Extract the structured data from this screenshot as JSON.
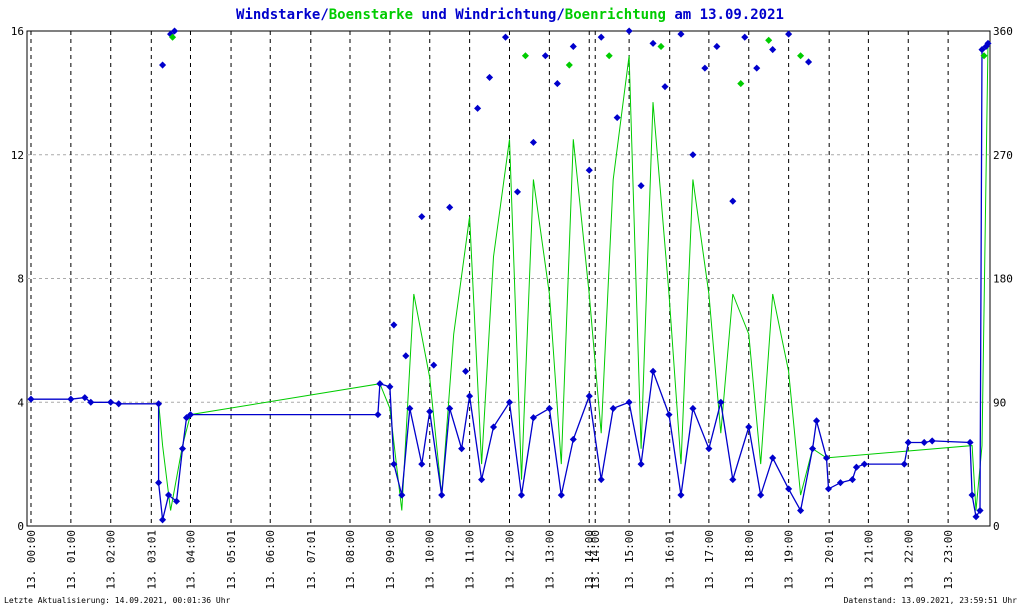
{
  "chart_data": {
    "type": "line",
    "title": {
      "parts": [
        {
          "text": "Windstarke",
          "color": "#0000cc"
        },
        {
          "text": "/",
          "color": "#0000cc"
        },
        {
          "text": "Boenstarke",
          "color": "#00cc00"
        },
        {
          "text": " und ",
          "color": "#0000cc"
        },
        {
          "text": "Windrichtung",
          "color": "#0000cc"
        },
        {
          "text": "/",
          "color": "#0000cc"
        },
        {
          "text": "Boenrichtung",
          "color": "#00cc00"
        },
        {
          "text": " am 13.09.2021",
          "color": "#0000cc"
        }
      ]
    },
    "y_left": {
      "ticks": [
        "0",
        "4",
        "8",
        "12",
        "16"
      ],
      "range": [
        0,
        16
      ]
    },
    "y_right": {
      "ticks": [
        "0",
        "90",
        "180",
        "270",
        "360"
      ],
      "range": [
        0,
        360
      ]
    },
    "x_ticks": [
      "13. 00:00",
      "13. 01:00",
      "13. 02:00",
      "13. 03:01",
      "13. 04:00",
      "13. 05:01",
      "13. 06:00",
      "13. 07:01",
      "13. 08:00",
      "13. 09:00",
      "13. 10:00",
      "13. 11:00",
      "13. 12:00",
      "13. 13:00",
      "13. 14:00",
      "13. 14:00",
      "13. 15:00",
      "13. 16:01",
      "13. 17:00",
      "13. 18:00",
      "13. 19:00",
      "13. 20:01",
      "13. 21:00",
      "13. 22:00",
      "13. 23:00"
    ],
    "x_tick_hours": [
      0,
      1,
      2,
      3.017,
      4,
      5.017,
      6,
      7.017,
      8,
      9,
      10,
      11,
      12,
      13,
      14,
      14.15,
      15,
      16.017,
      17,
      18,
      19,
      20.017,
      21,
      22,
      23
    ],
    "x_range_hours": [
      -0.1,
      24.05
    ],
    "series": [
      {
        "name": "Windstarke",
        "color": "#0000cc",
        "points": [
          [
            0,
            4.1
          ],
          [
            1,
            4.1
          ],
          [
            1.35,
            4.15
          ],
          [
            1.5,
            4.0
          ],
          [
            2,
            4.0
          ],
          [
            2.2,
            3.95
          ],
          [
            3.2,
            3.95
          ],
          [
            3.2,
            1.4
          ],
          [
            3.3,
            0.2
          ],
          [
            3.45,
            1.0
          ],
          [
            3.65,
            0.8
          ],
          [
            3.8,
            2.5
          ],
          [
            3.9,
            3.5
          ],
          [
            4,
            3.6
          ],
          [
            8.7,
            3.6
          ],
          [
            8.75,
            4.6
          ],
          [
            9.0,
            4.5
          ],
          [
            9.1,
            2.0
          ],
          [
            9.3,
            1.0
          ],
          [
            9.5,
            3.8
          ],
          [
            9.8,
            2.0
          ],
          [
            10.0,
            3.7
          ],
          [
            10.3,
            1.0
          ],
          [
            10.5,
            3.8
          ],
          [
            10.8,
            2.5
          ],
          [
            11.0,
            4.2
          ],
          [
            11.3,
            1.5
          ],
          [
            11.6,
            3.2
          ],
          [
            12.0,
            4.0
          ],
          [
            12.3,
            1.0
          ],
          [
            12.6,
            3.5
          ],
          [
            13.0,
            3.8
          ],
          [
            13.3,
            1.0
          ],
          [
            13.6,
            2.8
          ],
          [
            14.0,
            4.2
          ],
          [
            14.3,
            1.5
          ],
          [
            14.6,
            3.8
          ],
          [
            15.0,
            4.0
          ],
          [
            15.3,
            2.0
          ],
          [
            15.6,
            5.0
          ],
          [
            16.0,
            3.6
          ],
          [
            16.3,
            1.0
          ],
          [
            16.6,
            3.8
          ],
          [
            17.0,
            2.5
          ],
          [
            17.3,
            4.0
          ],
          [
            17.6,
            1.5
          ],
          [
            18.0,
            3.2
          ],
          [
            18.3,
            1.0
          ],
          [
            18.6,
            2.2
          ],
          [
            19.0,
            1.2
          ],
          [
            19.3,
            0.5
          ],
          [
            19.6,
            2.5
          ],
          [
            19.7,
            3.4
          ],
          [
            19.95,
            2.2
          ],
          [
            20.0,
            1.2
          ],
          [
            20.3,
            1.4
          ],
          [
            20.6,
            1.5
          ],
          [
            20.7,
            1.9
          ],
          [
            20.9,
            2.0
          ],
          [
            21.9,
            2.0
          ],
          [
            22.0,
            2.7
          ],
          [
            22.4,
            2.7
          ],
          [
            22.6,
            2.75
          ],
          [
            23.55,
            2.7
          ],
          [
            23.6,
            1.0
          ],
          [
            23.7,
            0.3
          ],
          [
            23.8,
            0.5
          ],
          [
            23.85,
            15.4
          ],
          [
            23.95,
            15.5
          ],
          [
            24.0,
            15.6
          ]
        ]
      },
      {
        "name": "Boenstarke",
        "color": "#00cc00",
        "points": [
          [
            3.2,
            4.0
          ],
          [
            3.3,
            2.6
          ],
          [
            3.5,
            0.5
          ],
          [
            3.8,
            2.6
          ],
          [
            4,
            3.6
          ],
          [
            8.75,
            4.6
          ],
          [
            9,
            3.8
          ],
          [
            9.3,
            0.5
          ],
          [
            9.6,
            7.5
          ],
          [
            10,
            4.8
          ],
          [
            10.3,
            1.0
          ],
          [
            10.6,
            6.2
          ],
          [
            11,
            10.0
          ],
          [
            11.3,
            2.0
          ],
          [
            11.6,
            8.7
          ],
          [
            12,
            12.5
          ],
          [
            12.3,
            1.5
          ],
          [
            12.6,
            11.2
          ],
          [
            13,
            7.5
          ],
          [
            13.3,
            2.0
          ],
          [
            13.6,
            12.5
          ],
          [
            14,
            7.5
          ],
          [
            14.3,
            3.0
          ],
          [
            14.6,
            11.2
          ],
          [
            15,
            15.2
          ],
          [
            15.3,
            2.5
          ],
          [
            15.6,
            13.7
          ],
          [
            16,
            7.5
          ],
          [
            16.3,
            2.0
          ],
          [
            16.6,
            11.2
          ],
          [
            17,
            7.5
          ],
          [
            17.3,
            3.0
          ],
          [
            17.6,
            7.5
          ],
          [
            18,
            6.2
          ],
          [
            18.3,
            2.0
          ],
          [
            18.6,
            7.5
          ],
          [
            19,
            5.0
          ],
          [
            19.3,
            1.0
          ],
          [
            19.6,
            2.5
          ],
          [
            19.95,
            2.2
          ],
          [
            23.6,
            2.6
          ],
          [
            23.7,
            0.5
          ],
          [
            23.85,
            2.6
          ],
          [
            24,
            15.6
          ]
        ]
      }
    ],
    "direction_scatter": [
      {
        "name": "Windrichtung",
        "color": "#0000cc",
        "points": [
          [
            3.3,
            14.9
          ],
          [
            3.5,
            15.9
          ],
          [
            3.6,
            16.0
          ],
          [
            9.1,
            6.5
          ],
          [
            9.4,
            5.5
          ],
          [
            9.8,
            10.0
          ],
          [
            10.1,
            5.2
          ],
          [
            10.5,
            10.3
          ],
          [
            10.9,
            5.0
          ],
          [
            11.2,
            13.5
          ],
          [
            11.5,
            14.5
          ],
          [
            11.9,
            15.8
          ],
          [
            12.2,
            10.8
          ],
          [
            12.6,
            12.4
          ],
          [
            12.9,
            15.2
          ],
          [
            13.2,
            14.3
          ],
          [
            13.6,
            15.5
          ],
          [
            14.0,
            11.5
          ],
          [
            14.3,
            15.8
          ],
          [
            14.7,
            13.2
          ],
          [
            15.0,
            16.0
          ],
          [
            15.3,
            11.0
          ],
          [
            15.6,
            15.6
          ],
          [
            15.9,
            14.2
          ],
          [
            16.3,
            15.9
          ],
          [
            16.6,
            12.0
          ],
          [
            16.9,
            14.8
          ],
          [
            17.2,
            15.5
          ],
          [
            17.6,
            10.5
          ],
          [
            17.9,
            15.8
          ],
          [
            18.2,
            14.8
          ],
          [
            18.6,
            15.4
          ],
          [
            19.0,
            15.9
          ],
          [
            19.5,
            15.0
          ]
        ]
      },
      {
        "name": "Boenrichtung",
        "color": "#00cc00",
        "points": [
          [
            3.55,
            15.8
          ],
          [
            12.4,
            15.2
          ],
          [
            13.5,
            14.9
          ],
          [
            14.5,
            15.2
          ],
          [
            15.8,
            15.5
          ],
          [
            17.8,
            14.3
          ],
          [
            18.5,
            15.7
          ],
          [
            19.3,
            15.2
          ],
          [
            23.9,
            15.2
          ]
        ]
      }
    ],
    "footer_left": "Letzte Aktualisierung: 14.09.2021, 00:01:36 Uhr",
    "footer_right": "Datenstand: 13.09.2021, 23:59:51 Uhr",
    "colors": {
      "wind": "#0000cc",
      "gust": "#00cc00",
      "grid": "#000000",
      "grid_h": "#aaaaaa"
    }
  }
}
